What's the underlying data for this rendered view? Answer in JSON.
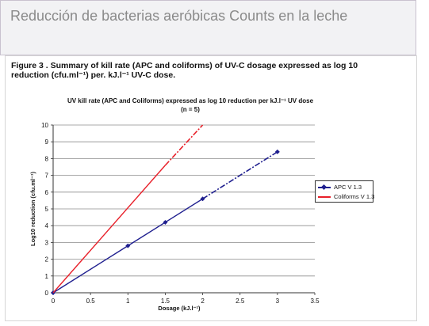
{
  "slide": {
    "title": "Reducción de bacterias aeróbicas Counts en la leche"
  },
  "figure": {
    "caption_line1": "Figure 3 . Summary of kill rate (APC and coliforms) of UV-C dosage expressed as log 10",
    "caption_line2": "reduction (cfu.ml⁻¹) per. kJ.l⁻¹ UV-C dose."
  },
  "chart_data": {
    "type": "line",
    "title": "UV  kill rate (APC and Coliforms) expressed as log 10 reduction per kJ.l⁻¹ UV dose",
    "subtitle": "(n = 5)",
    "xlabel": "Dosage (kJ.l⁻¹)",
    "ylabel": "Log10 reduction (cfu.ml⁻¹)",
    "xlim": [
      0,
      3.5
    ],
    "ylim": [
      0,
      10
    ],
    "xticks": [
      "0",
      "0.5",
      "1",
      "1.5",
      "2",
      "2.5",
      "3",
      "3.5"
    ],
    "yticks": [
      "0",
      "1",
      "2",
      "3",
      "4",
      "5",
      "6",
      "7",
      "8",
      "9",
      "10"
    ],
    "grid": "horizontal",
    "legend_position": "right",
    "series": [
      {
        "name": "APC V 1.3",
        "color": "#1f1f8f",
        "marker": "diamond",
        "solid": [
          [
            0,
            0
          ],
          [
            1,
            2.8
          ],
          [
            1.5,
            4.2
          ],
          [
            2,
            5.6
          ]
        ],
        "dashed": [
          [
            2,
            5.6
          ],
          [
            3,
            8.4
          ]
        ],
        "markers": [
          [
            0,
            0
          ],
          [
            1,
            2.8
          ],
          [
            1.5,
            4.2
          ],
          [
            2,
            5.6
          ],
          [
            3,
            8.4
          ]
        ]
      },
      {
        "name": "Coliforms V 1.3",
        "color": "#e8202a",
        "marker": "none",
        "solid": [
          [
            0,
            0
          ],
          [
            1.5,
            7.6
          ]
        ],
        "dashed": [
          [
            1.5,
            7.6
          ],
          [
            2,
            10
          ]
        ],
        "markers": []
      }
    ]
  }
}
